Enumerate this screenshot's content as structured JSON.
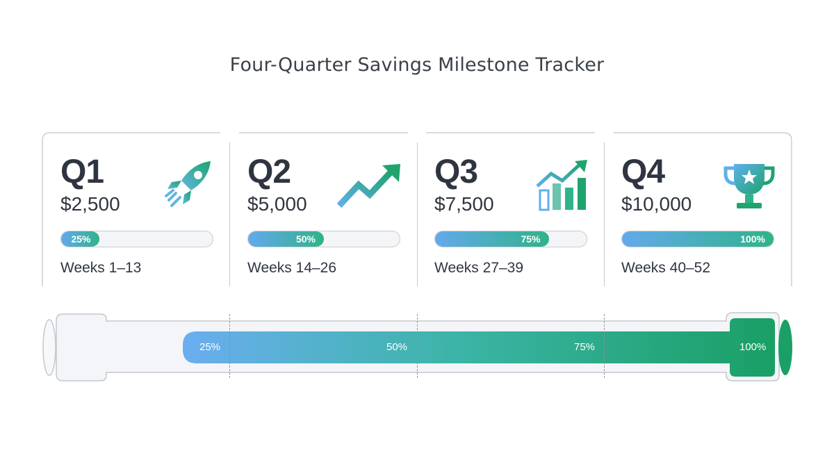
{
  "title": "Four-Quarter Savings Milestone Tracker",
  "colors": {
    "blue": "#63a9ec",
    "green": "#1fa36f",
    "track": "#f1f3f6",
    "text": "#2f3540"
  },
  "quarters": [
    {
      "label": "Q1",
      "amount": "$2,500",
      "progress": 0.25,
      "progress_label": "25%",
      "weeks": "Weeks 1–13",
      "icon": "rocket-icon"
    },
    {
      "label": "Q2",
      "amount": "$5,000",
      "progress": 0.5,
      "progress_label": "50%",
      "weeks": "Weeks 14–26",
      "icon": "trend-up-arrow-icon"
    },
    {
      "label": "Q3",
      "amount": "$7,500",
      "progress": 0.75,
      "progress_label": "75%",
      "weeks": "Weeks 27–39",
      "icon": "bar-chart-growth-icon"
    },
    {
      "label": "Q4",
      "amount": "$10,000",
      "progress": 1.0,
      "progress_label": "100%",
      "weeks": "Weeks 40–52",
      "icon": "trophy-icon"
    }
  ],
  "overall": {
    "progress": 1.0,
    "milestones": [
      "25%",
      "50%",
      "75%",
      "100%"
    ]
  }
}
